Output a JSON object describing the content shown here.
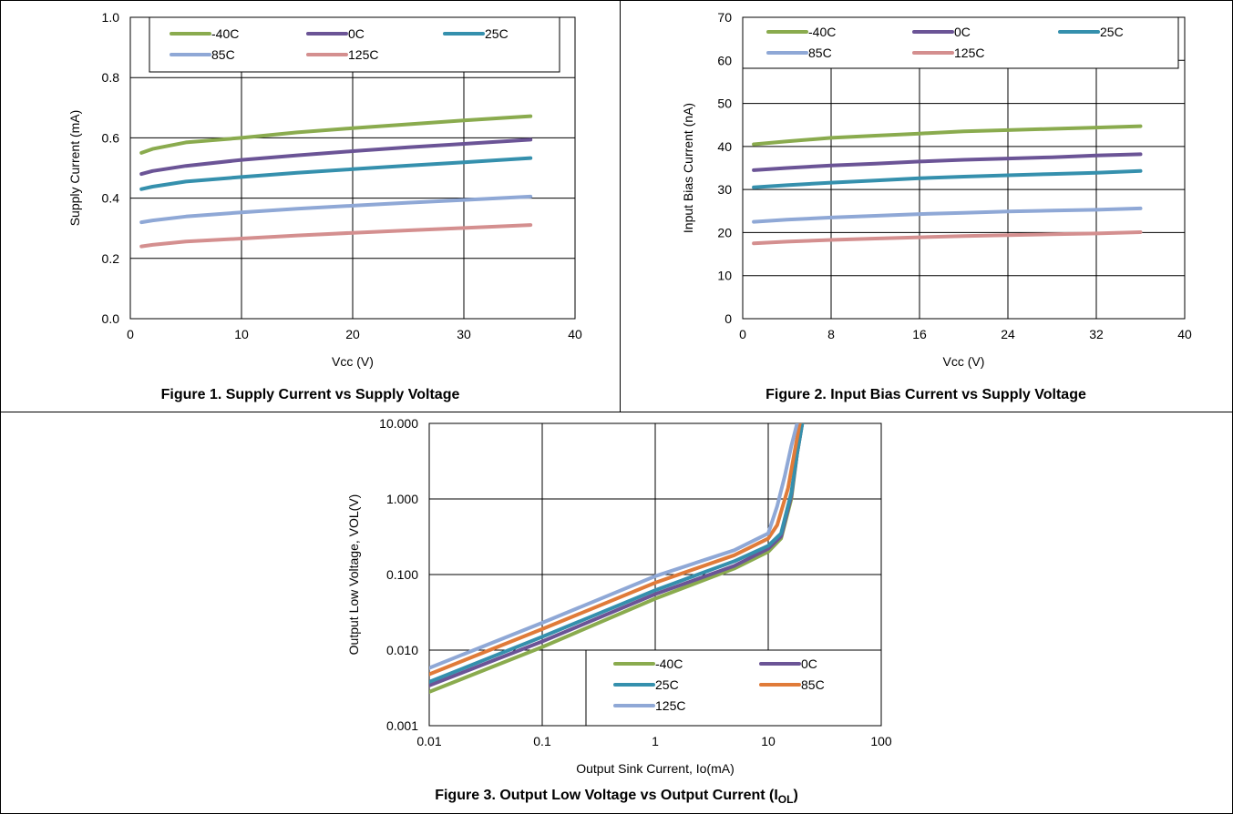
{
  "chart_data": [
    {
      "type": "line",
      "caption": "Figure 1. Supply Current vs Supply Voltage",
      "xlabel": "Vcc (V)",
      "ylabel": "Supply Current (mA)",
      "xlim": [
        0,
        40
      ],
      "ylim": [
        0,
        1.0
      ],
      "xticks": [
        "0",
        "10",
        "20",
        "30",
        "40"
      ],
      "yticks": [
        "0.0",
        "0.2",
        "0.4",
        "0.6",
        "0.8",
        "1.0"
      ],
      "xtick_values": [
        0,
        10,
        20,
        30,
        40
      ],
      "ytick_values": [
        0,
        0.2,
        0.4,
        0.6,
        0.8,
        1.0
      ],
      "grid": true,
      "legend": "top",
      "x": [
        1,
        2,
        5,
        10,
        15,
        20,
        25,
        30,
        36
      ],
      "series": [
        {
          "name": "-40C",
          "color": "#8aab4e",
          "values": [
            0.55,
            0.563,
            0.585,
            0.6,
            0.618,
            0.632,
            0.645,
            0.658,
            0.672
          ]
        },
        {
          "name": "0C",
          "color": "#6b5496",
          "values": [
            0.48,
            0.49,
            0.507,
            0.527,
            0.542,
            0.556,
            0.569,
            0.58,
            0.594
          ]
        },
        {
          "name": "25C",
          "color": "#3590ad",
          "values": [
            0.43,
            0.438,
            0.455,
            0.47,
            0.484,
            0.496,
            0.508,
            0.519,
            0.533
          ]
        },
        {
          "name": "85C",
          "color": "#8fa8d6",
          "values": [
            0.32,
            0.326,
            0.339,
            0.353,
            0.365,
            0.375,
            0.385,
            0.394,
            0.405
          ]
        },
        {
          "name": "125C",
          "color": "#d48f8f",
          "values": [
            0.24,
            0.245,
            0.256,
            0.266,
            0.276,
            0.285,
            0.293,
            0.301,
            0.311
          ]
        }
      ]
    },
    {
      "type": "line",
      "caption": "Figure 2. Input Bias Current vs Supply Voltage",
      "xlabel": "Vcc (V)",
      "ylabel": "Input Bias Current (nA)",
      "xlim": [
        0,
        40
      ],
      "ylim": [
        0,
        70
      ],
      "xticks": [
        "0",
        "8",
        "16",
        "24",
        "32",
        "40"
      ],
      "yticks": [
        "0",
        "10",
        "20",
        "30",
        "40",
        "50",
        "60",
        "70"
      ],
      "xtick_values": [
        0,
        8,
        16,
        24,
        32,
        40
      ],
      "ytick_values": [
        0,
        10,
        20,
        30,
        40,
        50,
        60,
        70
      ],
      "grid": true,
      "legend": "top",
      "x": [
        1,
        4,
        8,
        12,
        16,
        20,
        24,
        28,
        32,
        36
      ],
      "series": [
        {
          "name": "-40C",
          "color": "#8aab4e",
          "values": [
            40.5,
            41.2,
            42.0,
            42.5,
            43.0,
            43.5,
            43.8,
            44.1,
            44.4,
            44.7
          ]
        },
        {
          "name": "0C",
          "color": "#6b5496",
          "values": [
            34.5,
            35.0,
            35.6,
            36.0,
            36.5,
            36.9,
            37.2,
            37.5,
            37.9,
            38.2
          ]
        },
        {
          "name": "25C",
          "color": "#3590ad",
          "values": [
            30.5,
            31.0,
            31.6,
            32.1,
            32.6,
            33.0,
            33.3,
            33.6,
            33.9,
            34.3
          ]
        },
        {
          "name": "85C",
          "color": "#8fa8d6",
          "values": [
            22.5,
            23.0,
            23.5,
            23.9,
            24.3,
            24.6,
            24.9,
            25.1,
            25.3,
            25.6
          ]
        },
        {
          "name": "125C",
          "color": "#d48f8f",
          "values": [
            17.5,
            17.9,
            18.3,
            18.6,
            18.9,
            19.2,
            19.4,
            19.6,
            19.8,
            20.1
          ]
        }
      ]
    },
    {
      "type": "line",
      "caption": "Figure 3. Output Low Voltage vs Output Current (I",
      "caption_sub": "OL",
      "caption_end": ")",
      "xlabel": "Output Sink Current, Io(mA)",
      "ylabel": "Output Low Voltage, VOL(V)",
      "xscale": "log",
      "yscale": "log",
      "xlim": [
        0.01,
        100
      ],
      "ylim": [
        0.001,
        10
      ],
      "xticks": [
        "0.01",
        "0.1",
        "1",
        "10",
        "100"
      ],
      "yticks": [
        "0.001",
        "0.010",
        "0.100",
        "1.000",
        "10.000"
      ],
      "xtick_values": [
        0.01,
        0.1,
        1,
        10,
        100
      ],
      "ytick_values": [
        0.001,
        0.01,
        0.1,
        1,
        10
      ],
      "grid": true,
      "legend": "bottom-right",
      "series": [
        {
          "name": "-40C",
          "color": "#8aab4e",
          "x": [
            0.01,
            0.1,
            1,
            5,
            10,
            13,
            16,
            18,
            20
          ],
          "values": [
            0.0028,
            0.011,
            0.048,
            0.12,
            0.2,
            0.3,
            1.0,
            4.0,
            10.0
          ]
        },
        {
          "name": "0C",
          "color": "#6b5496",
          "x": [
            0.01,
            0.1,
            1,
            5,
            10,
            13,
            16,
            18,
            20
          ],
          "values": [
            0.0034,
            0.013,
            0.055,
            0.13,
            0.22,
            0.32,
            1.1,
            4.0,
            10.0
          ]
        },
        {
          "name": "25C",
          "color": "#3590ad",
          "x": [
            0.01,
            0.1,
            1,
            5,
            10,
            13,
            16,
            18,
            20
          ],
          "values": [
            0.0038,
            0.015,
            0.062,
            0.15,
            0.24,
            0.35,
            1.2,
            4.0,
            10.0
          ]
        },
        {
          "name": "85C",
          "color": "#e07b39",
          "x": [
            0.01,
            0.1,
            1,
            5,
            10,
            12,
            15,
            17,
            19
          ],
          "values": [
            0.0048,
            0.019,
            0.078,
            0.18,
            0.3,
            0.45,
            1.4,
            4.0,
            10.0
          ]
        },
        {
          "name": "125C",
          "color": "#8fa8d6",
          "x": [
            0.01,
            0.1,
            1,
            5,
            10,
            12,
            14,
            16,
            18
          ],
          "values": [
            0.0058,
            0.023,
            0.095,
            0.21,
            0.35,
            0.8,
            2.0,
            5.0,
            10.0
          ]
        }
      ]
    }
  ]
}
